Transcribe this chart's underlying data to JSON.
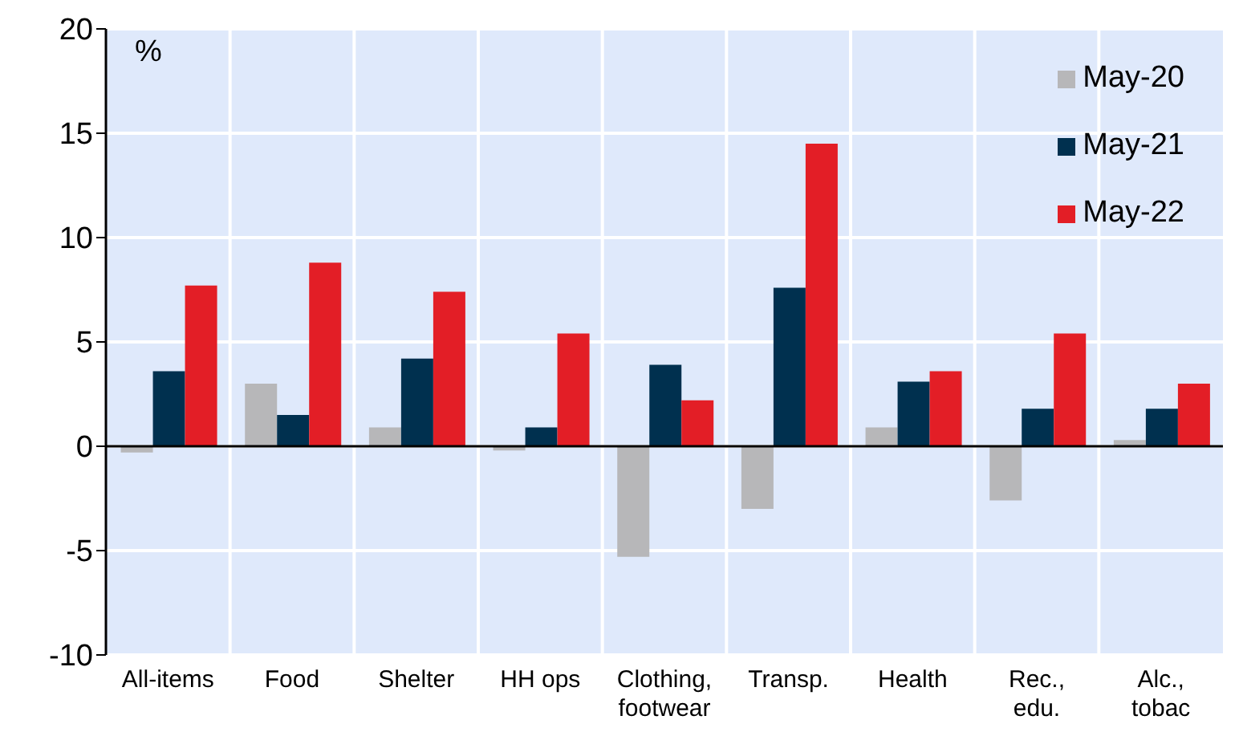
{
  "chart_data": {
    "type": "bar",
    "ylabel": "%",
    "categories": [
      "All-items",
      "Food",
      "Shelter",
      "HH ops",
      "Clothing, footwear",
      "Transp.",
      "Health",
      "Rec., edu.",
      "Alc., tobac"
    ],
    "series": [
      {
        "name": "May-20",
        "color": "#b7b7b9",
        "values": [
          -0.3,
          3.0,
          0.9,
          -0.2,
          -5.3,
          -3.0,
          0.9,
          -2.6,
          0.3
        ]
      },
      {
        "name": "May-21",
        "color": "#00304f",
        "values": [
          3.6,
          1.5,
          4.2,
          0.9,
          3.9,
          7.6,
          3.1,
          1.8,
          1.8
        ]
      },
      {
        "name": "May-22",
        "color": "#e31e26",
        "values": [
          7.7,
          8.8,
          7.4,
          5.4,
          2.2,
          14.5,
          3.6,
          5.4,
          3.0
        ]
      }
    ],
    "ylim": [
      -10,
      20
    ],
    "yticks": [
      -10,
      -5,
      0,
      5,
      10,
      15,
      20
    ],
    "grid": true,
    "legend": "top right"
  }
}
